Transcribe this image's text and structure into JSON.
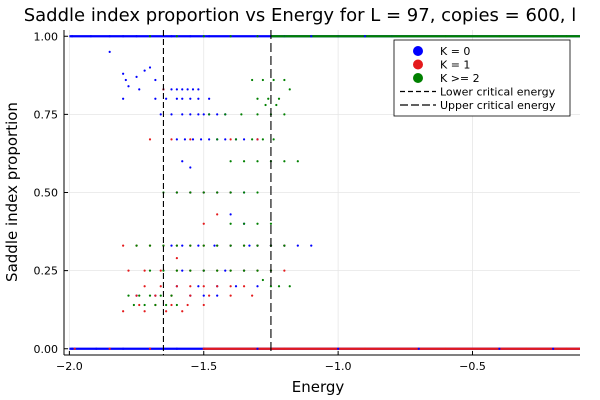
{
  "chart_data": {
    "type": "scatter",
    "title": "Saddle index proportion vs Energy for L = 97, copies = 600, l",
    "xlabel": "Energy",
    "ylabel": "Saddle index proportion",
    "xlim": [
      -2.02,
      -0.1
    ],
    "ylim": [
      -0.02,
      1.02
    ],
    "xticks": [
      -2.0,
      -1.5,
      -1.0,
      -0.5
    ],
    "xtick_labels": [
      "−2.0",
      "−1.5",
      "−1.0",
      "−0.5"
    ],
    "yticks": [
      0.0,
      0.25,
      0.5,
      0.75,
      1.0
    ],
    "ytick_labels": [
      "0.00",
      "0.25",
      "0.50",
      "0.75",
      "1.00"
    ],
    "grid": true,
    "legend_position": "top-right",
    "colors": {
      "K0": "#0000ff",
      "K1": "#e41a1c",
      "K2": "#008000",
      "frame": "#000000"
    },
    "series": [
      {
        "name": "K = 0",
        "color": "#0000ff",
        "x": [
          -1.99,
          -1.92,
          -1.85,
          -1.8,
          -1.75,
          -1.7,
          -1.62,
          -1.55,
          -1.48,
          -1.4,
          -1.3,
          -1.2,
          -1.1,
          -1.0,
          -0.9,
          -0.8,
          -1.85,
          -1.8,
          -1.79,
          -1.78,
          -1.75,
          -1.72,
          -1.7,
          -1.68,
          -1.8,
          -1.74,
          -1.65,
          -1.62,
          -1.6,
          -1.58,
          -1.56,
          -1.54,
          -1.52,
          -1.68,
          -1.64,
          -1.6,
          -1.58,
          -1.55,
          -1.52,
          -1.48,
          -1.66,
          -1.62,
          -1.58,
          -1.55,
          -1.52,
          -1.5,
          -1.48,
          -1.45,
          -1.42,
          -1.6,
          -1.57,
          -1.54,
          -1.51,
          -1.48,
          -1.45,
          -1.42,
          -1.38,
          -1.35,
          -1.3,
          -1.6,
          -1.55,
          -1.5,
          -1.45,
          -1.4,
          -1.35,
          -1.3,
          -1.25,
          -1.2,
          -1.15,
          -1.1,
          -1.62,
          -1.58,
          -1.52,
          -1.46,
          -1.4,
          -1.33,
          -1.25,
          -1.58,
          -1.5,
          -1.42,
          -1.35,
          -1.6,
          -1.52,
          -1.45,
          -1.38,
          -1.75,
          -1.68,
          -1.55,
          -1.5,
          -1.45,
          -1.58,
          -1.55,
          -1.4,
          -1.35,
          -1.3,
          -1.99,
          -1.9,
          -1.8,
          -1.7,
          -1.6,
          -1.5,
          -1.3,
          -1.0,
          -0.7,
          -0.4,
          -0.2
        ],
        "y": [
          1.0,
          1.0,
          1.0,
          1.0,
          1.0,
          1.0,
          1.0,
          1.0,
          1.0,
          1.0,
          1.0,
          1.0,
          1.0,
          1.0,
          1.0,
          1.0,
          0.95,
          0.88,
          0.86,
          0.84,
          0.87,
          0.89,
          0.9,
          0.86,
          0.8,
          0.83,
          0.83,
          0.83,
          0.83,
          0.83,
          0.83,
          0.83,
          0.83,
          0.8,
          0.8,
          0.8,
          0.8,
          0.8,
          0.8,
          0.8,
          0.75,
          0.75,
          0.75,
          0.75,
          0.75,
          0.75,
          0.75,
          0.75,
          0.75,
          0.67,
          0.67,
          0.67,
          0.67,
          0.67,
          0.67,
          0.67,
          0.67,
          0.67,
          0.67,
          0.5,
          0.5,
          0.5,
          0.5,
          0.5,
          0.5,
          0.33,
          0.33,
          0.33,
          0.33,
          0.33,
          0.33,
          0.33,
          0.33,
          0.33,
          0.33,
          0.33,
          0.33,
          0.25,
          0.25,
          0.25,
          0.25,
          0.2,
          0.2,
          0.2,
          0.2,
          0.17,
          0.17,
          0.17,
          0.17,
          0.17,
          0.6,
          0.58,
          0.43,
          0.4,
          0.2,
          0.0,
          0.0,
          0.0,
          0.0,
          0.0,
          0.0,
          0.0,
          0.0,
          0.0,
          0.0,
          0.0
        ]
      },
      {
        "name": "K = 1",
        "color": "#e41a1c",
        "x": [
          -1.8,
          -1.75,
          -1.7,
          -1.65,
          -1.6,
          -1.55,
          -1.5,
          -1.45,
          -1.4,
          -1.35,
          -1.3,
          -1.25,
          -1.2,
          -1.78,
          -1.72,
          -1.66,
          -1.6,
          -1.55,
          -1.5,
          -1.45,
          -1.4,
          -1.35,
          -1.3,
          -1.25,
          -1.2,
          -1.72,
          -1.66,
          -1.6,
          -1.55,
          -1.5,
          -1.45,
          -1.4,
          -1.35,
          -1.75,
          -1.68,
          -1.62,
          -1.55,
          -1.48,
          -1.4,
          -1.32,
          -1.74,
          -1.68,
          -1.62,
          -1.56,
          -1.5,
          -1.8,
          -1.72,
          -1.64,
          -1.58,
          -1.6,
          -1.55,
          -1.5,
          -1.45,
          -1.4,
          -1.7,
          -1.62,
          -1.55,
          -1.4,
          -1.3,
          -1.5,
          -1.45,
          -1.6,
          -1.65,
          -1.98,
          -1.85,
          -1.7,
          -1.5,
          -1.2,
          -0.9,
          -0.6,
          -0.3,
          -0.15
        ],
        "y": [
          0.33,
          0.33,
          0.33,
          0.33,
          0.33,
          0.33,
          0.33,
          0.33,
          0.33,
          0.33,
          0.33,
          0.33,
          0.33,
          0.25,
          0.25,
          0.25,
          0.25,
          0.25,
          0.25,
          0.25,
          0.25,
          0.25,
          0.25,
          0.25,
          0.25,
          0.2,
          0.2,
          0.2,
          0.2,
          0.2,
          0.2,
          0.2,
          0.2,
          0.17,
          0.17,
          0.17,
          0.17,
          0.17,
          0.17,
          0.17,
          0.14,
          0.14,
          0.14,
          0.14,
          0.14,
          0.12,
          0.12,
          0.12,
          0.12,
          0.5,
          0.5,
          0.5,
          0.5,
          0.5,
          0.67,
          0.67,
          0.67,
          0.67,
          0.67,
          0.4,
          0.43,
          0.29,
          0.83,
          0.0,
          0.0,
          0.0,
          0.0,
          0.0,
          0.0,
          0.0,
          0.0,
          0.0
        ]
      },
      {
        "name": "K >= 2",
        "color": "#008000",
        "x": [
          -1.7,
          -1.6,
          -1.5,
          -1.4,
          -1.3,
          -1.2,
          -1.0,
          -0.8,
          -0.6,
          -0.4,
          -0.2,
          -0.15,
          -1.32,
          -1.28,
          -1.24,
          -1.2,
          -1.18,
          -1.22,
          -1.26,
          -1.3,
          -1.27,
          -1.23,
          -1.48,
          -1.42,
          -1.36,
          -1.3,
          -1.25,
          -1.2,
          -1.45,
          -1.38,
          -1.32,
          -1.28,
          -1.24,
          -1.4,
          -1.35,
          -1.3,
          -1.25,
          -1.2,
          -1.15,
          -1.65,
          -1.6,
          -1.55,
          -1.5,
          -1.45,
          -1.4,
          -1.35,
          -1.3,
          -1.4,
          -1.35,
          -1.3,
          -1.25,
          -1.75,
          -1.7,
          -1.65,
          -1.6,
          -1.55,
          -1.5,
          -1.45,
          -1.4,
          -1.35,
          -1.3,
          -1.25,
          -1.2,
          -1.7,
          -1.65,
          -1.6,
          -1.55,
          -1.5,
          -1.45,
          -1.4,
          -1.35,
          -1.3,
          -1.25,
          -1.78,
          -1.74,
          -1.7,
          -1.66,
          -1.62,
          -1.76,
          -1.72,
          -1.68,
          -1.64,
          -1.6,
          -1.25,
          -1.22,
          -1.18,
          -1.28
        ],
        "y": [
          1.0,
          1.0,
          1.0,
          1.0,
          1.0,
          1.0,
          1.0,
          1.0,
          1.0,
          1.0,
          1.0,
          1.0,
          0.86,
          0.86,
          0.86,
          0.86,
          0.83,
          0.8,
          0.8,
          0.8,
          0.78,
          0.78,
          0.75,
          0.75,
          0.75,
          0.75,
          0.75,
          0.75,
          0.67,
          0.67,
          0.67,
          0.67,
          0.67,
          0.6,
          0.6,
          0.6,
          0.6,
          0.6,
          0.6,
          0.5,
          0.5,
          0.5,
          0.5,
          0.5,
          0.5,
          0.5,
          0.5,
          0.4,
          0.4,
          0.4,
          0.4,
          0.33,
          0.33,
          0.33,
          0.33,
          0.33,
          0.33,
          0.33,
          0.33,
          0.33,
          0.33,
          0.33,
          0.33,
          0.25,
          0.25,
          0.25,
          0.25,
          0.25,
          0.25,
          0.25,
          0.25,
          0.25,
          0.25,
          0.17,
          0.17,
          0.17,
          0.17,
          0.17,
          0.14,
          0.14,
          0.14,
          0.14,
          0.14,
          0.2,
          0.2,
          0.2,
          0.22
        ]
      }
    ],
    "band_lines": [
      {
        "y": 1.0,
        "x0": -2.0,
        "x1": -0.1,
        "color": "#0000ff"
      },
      {
        "y": 1.0,
        "x0": -1.25,
        "x1": -0.1,
        "color": "#008000"
      },
      {
        "y": 0.0,
        "x0": -2.0,
        "x1": -0.1,
        "color": "#0000ff"
      },
      {
        "y": 0.0,
        "x0": -1.5,
        "x1": -0.1,
        "color": "#e41a1c"
      }
    ],
    "vlines": [
      {
        "name": "Lower critical energy",
        "x": -1.65,
        "style": "dash"
      },
      {
        "name": "Upper critical energy",
        "x": -1.25,
        "style": "longdash"
      }
    ],
    "legend": [
      {
        "label": "K = 0",
        "kind": "marker",
        "color": "#0000ff"
      },
      {
        "label": "K = 1",
        "kind": "marker",
        "color": "#e41a1c"
      },
      {
        "label": "K >= 2",
        "kind": "marker",
        "color": "#008000"
      },
      {
        "label": "Lower critical energy",
        "kind": "dash",
        "color": "#000000"
      },
      {
        "label": "Upper critical energy",
        "kind": "longdash",
        "color": "#000000"
      }
    ]
  }
}
